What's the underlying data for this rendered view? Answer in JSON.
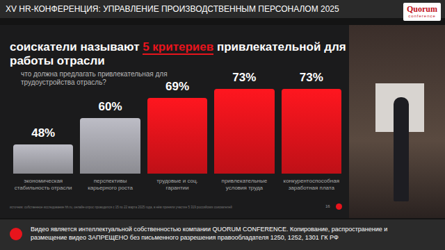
{
  "header": {
    "conference": "XV HR-КОНФЕРЕНЦИЯ: УПРАВЛЕНИЕ ПРОИЗВОДСТВЕННЫМ ПЕРСОНАЛОМ 2025",
    "logo": "Quorum",
    "logo_sub": "conference"
  },
  "slide": {
    "title_highlight": "5 критериев",
    "source": "источник: собственное исследование hh.ru, онлайн-опрос проводился с 15 по 22 марта 2025 года, в нём приняли участие 5 319 российских соискателей",
    "page": "16"
  },
  "footer": {
    "text": "Видео является интеллектуальной собственностью компании QUORUM CONFERENCE. Копирование, распространение и размещение видео ЗАПРЕЩЕНО без письменного разрешения правообладателя 1250, 1252, 1301 ГК РФ"
  },
  "chart_data": {
    "type": "bar",
    "title": "соискатели называют 5 критериев привлекательной для работы отрасли",
    "subtitle": "что должна предлагать привлекательная для трудоустройства отрасль?",
    "categories": [
      "экономическая стабильность отрасли",
      "перспективы карьерного роста",
      "трудовые и соц. гарантии",
      "привлекательные условия труда",
      "конкурентоспособная заработная плата"
    ],
    "values": [
      48,
      60,
      69,
      73,
      73
    ],
    "value_labels": [
      "48%",
      "60%",
      "69%",
      "73%",
      "73%"
    ],
    "colors": [
      "#a9a9b1",
      "#a9a9b1",
      "#e8141c",
      "#e8141c",
      "#e8141c"
    ],
    "ylim": [
      35,
      75
    ],
    "grid": false,
    "data_labels": true,
    "tick_labels": "x"
  }
}
